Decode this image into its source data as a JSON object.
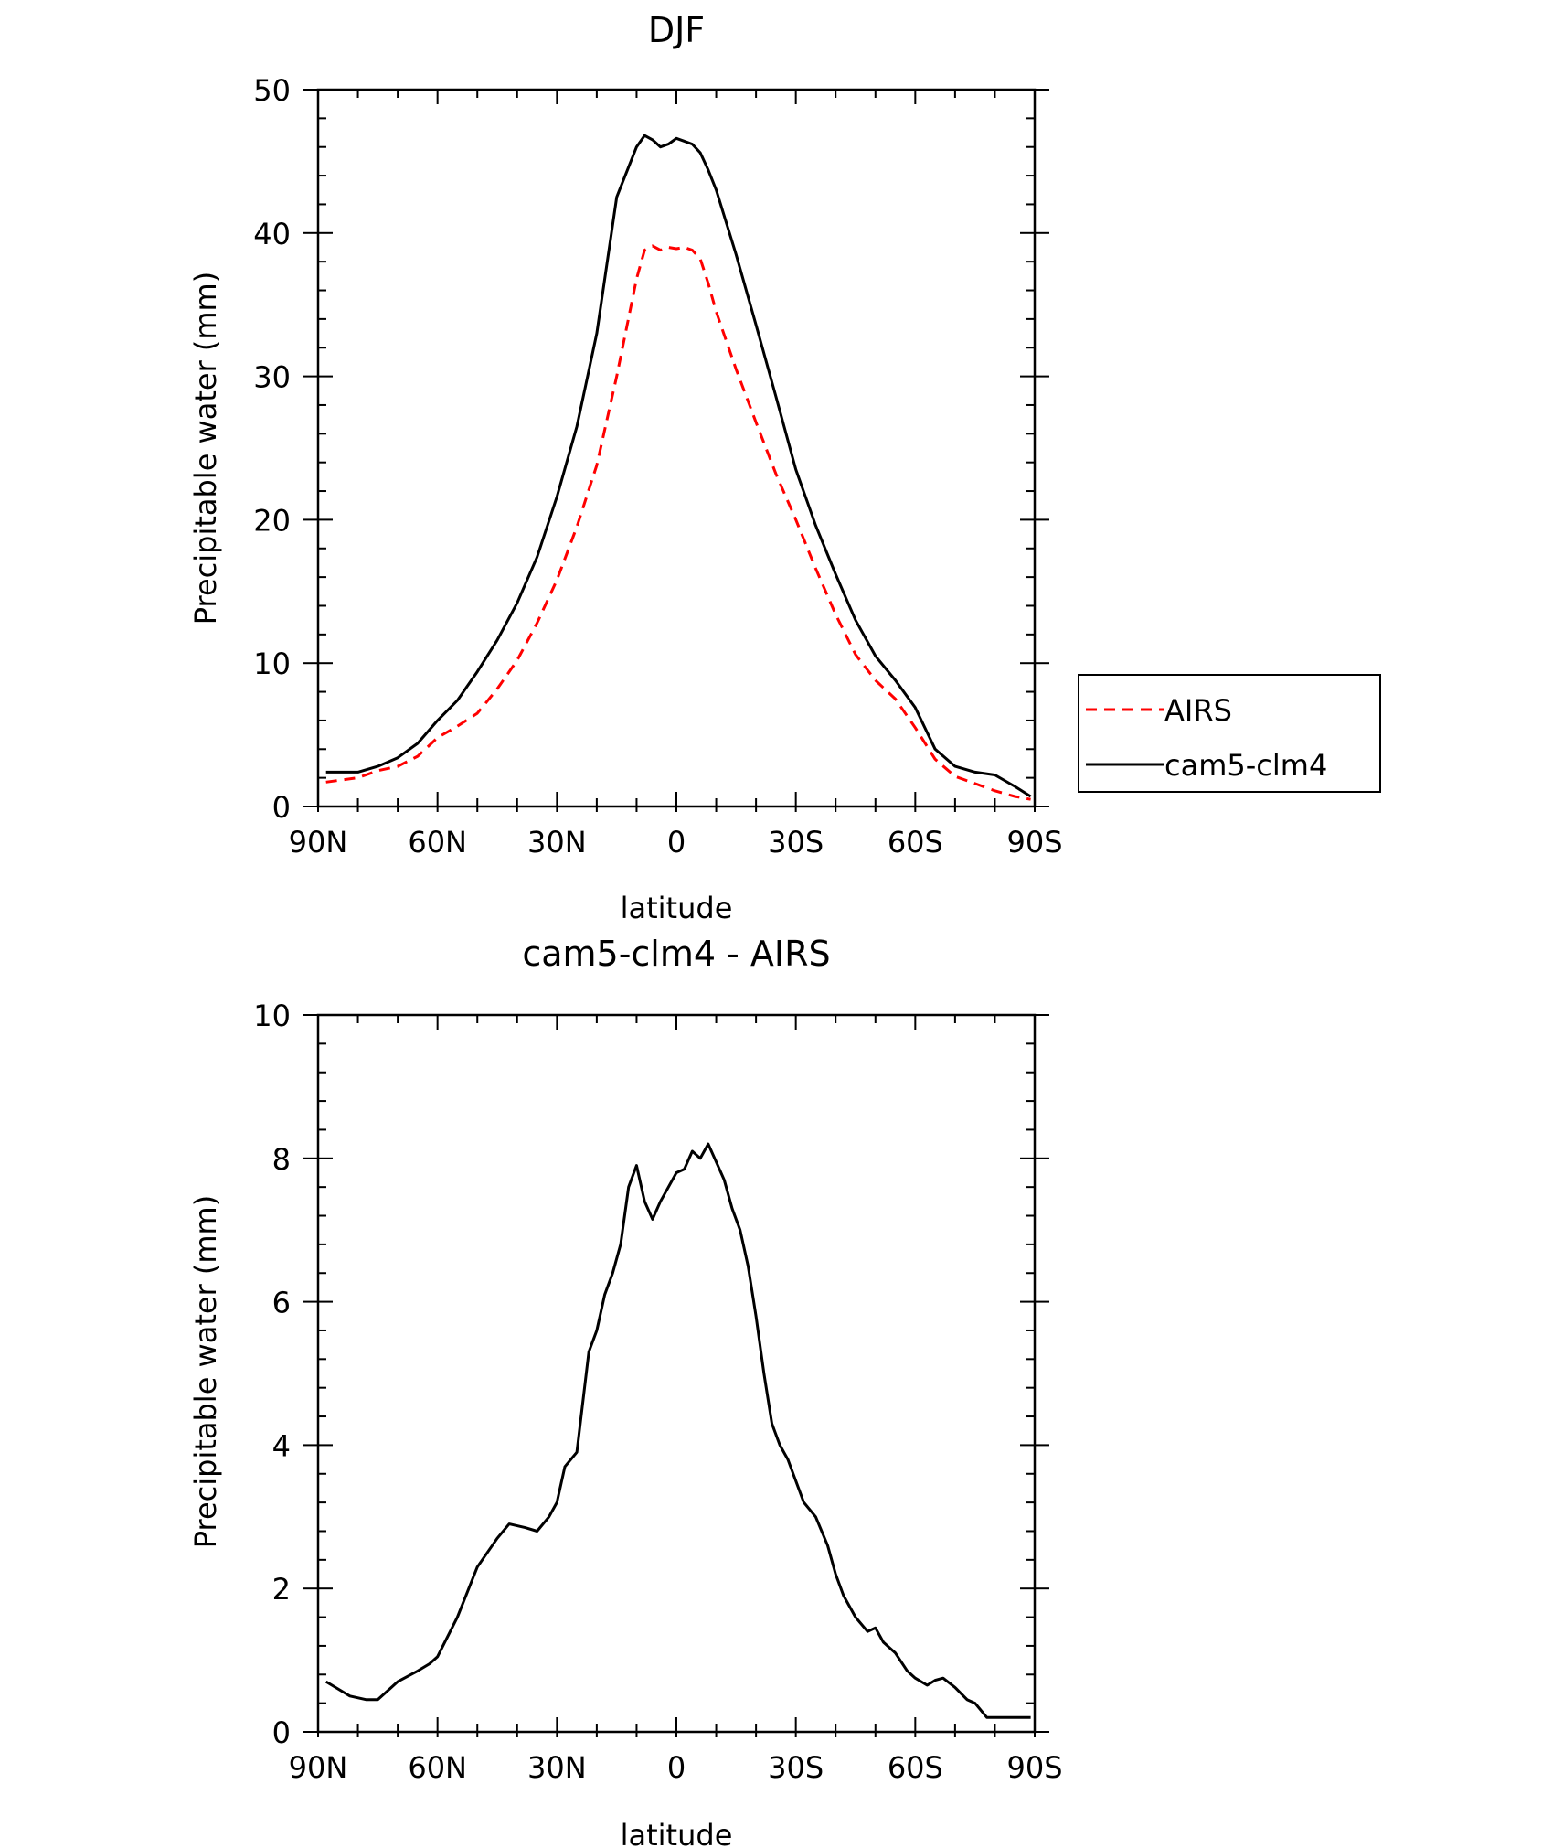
{
  "chart_data": [
    {
      "type": "line",
      "title": "DJF",
      "xlabel": "latitude",
      "ylabel": "Precipitable water (mm)",
      "xlim": [
        90,
        -90
      ],
      "ylim": [
        0,
        50
      ],
      "x_ticks": [
        {
          "value": 90,
          "label": "90N"
        },
        {
          "value": 60,
          "label": "60N"
        },
        {
          "value": 30,
          "label": "30N"
        },
        {
          "value": 0,
          "label": "0"
        },
        {
          "value": -30,
          "label": "30S"
        },
        {
          "value": -60,
          "label": "60S"
        },
        {
          "value": -90,
          "label": "90S"
        }
      ],
      "y_ticks": [
        {
          "value": 0,
          "label": "0"
        },
        {
          "value": 10,
          "label": "10"
        },
        {
          "value": 20,
          "label": "20"
        },
        {
          "value": 30,
          "label": "30"
        },
        {
          "value": 40,
          "label": "40"
        },
        {
          "value": 50,
          "label": "50"
        }
      ],
      "legend": {
        "position": "right",
        "entries": [
          "AIRS",
          "cam5-clm4"
        ]
      },
      "series": [
        {
          "name": "AIRS",
          "color": "#ff0000",
          "dashed": true,
          "x": [
            88,
            80,
            75,
            70,
            65,
            60,
            55,
            50,
            45,
            40,
            35,
            30,
            25,
            20,
            15,
            10,
            8,
            6,
            4,
            2,
            0,
            -2,
            -4,
            -6,
            -8,
            -10,
            -15,
            -20,
            -25,
            -30,
            -35,
            -40,
            -45,
            -50,
            -55,
            -60,
            -65,
            -70,
            -75,
            -80,
            -85,
            -89
          ],
          "values": [
            1.7,
            2.0,
            2.5,
            2.8,
            3.5,
            4.8,
            5.6,
            6.5,
            8.2,
            10.2,
            12.8,
            15.8,
            19.5,
            23.8,
            30.0,
            36.8,
            38.8,
            39.1,
            38.8,
            39.0,
            38.9,
            39.0,
            38.8,
            38.2,
            36.5,
            34.5,
            30.5,
            26.8,
            23.2,
            20.0,
            16.6,
            13.4,
            10.6,
            8.8,
            7.5,
            5.5,
            3.3,
            2.1,
            1.6,
            1.1,
            0.7,
            0.5
          ]
        },
        {
          "name": "cam5-clm4",
          "color": "#000000",
          "dashed": false,
          "x": [
            88,
            80,
            75,
            70,
            65,
            60,
            55,
            50,
            45,
            40,
            35,
            30,
            25,
            20,
            15,
            10,
            8,
            6,
            4,
            2,
            0,
            -2,
            -4,
            -6,
            -8,
            -10,
            -15,
            -20,
            -25,
            -30,
            -35,
            -40,
            -45,
            -50,
            -55,
            -60,
            -65,
            -70,
            -75,
            -80,
            -85,
            -89
          ],
          "values": [
            2.4,
            2.4,
            2.8,
            3.4,
            4.4,
            6.0,
            7.4,
            9.4,
            11.6,
            14.2,
            17.4,
            21.6,
            26.5,
            33.0,
            42.5,
            46.0,
            46.8,
            46.5,
            46.0,
            46.2,
            46.6,
            46.4,
            46.2,
            45.6,
            44.4,
            43.0,
            38.5,
            33.6,
            28.6,
            23.5,
            19.6,
            16.2,
            13.0,
            10.5,
            8.8,
            6.9,
            4.0,
            2.8,
            2.4,
            2.2,
            1.4,
            0.7
          ]
        }
      ]
    },
    {
      "type": "line",
      "title": "cam5-clm4 - AIRS",
      "xlabel": "latitude",
      "ylabel": "Precipitable water (mm)",
      "xlim": [
        90,
        -90
      ],
      "ylim": [
        0,
        10
      ],
      "x_ticks": [
        {
          "value": 90,
          "label": "90N"
        },
        {
          "value": 60,
          "label": "60N"
        },
        {
          "value": 30,
          "label": "30N"
        },
        {
          "value": 0,
          "label": "0"
        },
        {
          "value": -30,
          "label": "30S"
        },
        {
          "value": -60,
          "label": "60S"
        },
        {
          "value": -90,
          "label": "90S"
        }
      ],
      "y_ticks": [
        {
          "value": 0,
          "label": "0"
        },
        {
          "value": 2,
          "label": "2"
        },
        {
          "value": 4,
          "label": "4"
        },
        {
          "value": 6,
          "label": "6"
        },
        {
          "value": 8,
          "label": "8"
        },
        {
          "value": 10,
          "label": "10"
        }
      ],
      "series": [
        {
          "name": "cam5-clm4 - AIRS",
          "color": "#000000",
          "dashed": false,
          "x": [
            88,
            85,
            82,
            78,
            75,
            72,
            70,
            65,
            62,
            60,
            55,
            50,
            45,
            42,
            38,
            35,
            32,
            30,
            28,
            25,
            22,
            20,
            18,
            16,
            14,
            12,
            10,
            8,
            6,
            4,
            2,
            0,
            -2,
            -4,
            -6,
            -8,
            -10,
            -12,
            -14,
            -16,
            -18,
            -20,
            -22,
            -24,
            -26,
            -28,
            -30,
            -32,
            -35,
            -38,
            -40,
            -42,
            -45,
            -48,
            -50,
            -52,
            -55,
            -58,
            -60,
            -63,
            -65,
            -67,
            -70,
            -73,
            -75,
            -78,
            -80,
            -83,
            -85,
            -87,
            -89
          ],
          "values": [
            0.7,
            0.6,
            0.5,
            0.45,
            0.45,
            0.6,
            0.7,
            0.85,
            0.95,
            1.05,
            1.6,
            2.3,
            2.7,
            2.9,
            2.85,
            2.8,
            3.0,
            3.2,
            3.7,
            3.9,
            5.3,
            5.6,
            6.1,
            6.4,
            6.8,
            7.6,
            7.9,
            7.4,
            7.15,
            7.4,
            7.6,
            7.8,
            7.85,
            8.1,
            8.0,
            8.2,
            7.95,
            7.7,
            7.3,
            7.0,
            6.5,
            5.8,
            5.0,
            4.3,
            4.0,
            3.8,
            3.5,
            3.2,
            3.0,
            2.6,
            2.2,
            1.9,
            1.6,
            1.4,
            1.45,
            1.25,
            1.1,
            0.85,
            0.75,
            0.65,
            0.72,
            0.75,
            0.62,
            0.45,
            0.4,
            0.2,
            0.2,
            0.2,
            0.2,
            0.2,
            0.2
          ]
        }
      ]
    }
  ]
}
